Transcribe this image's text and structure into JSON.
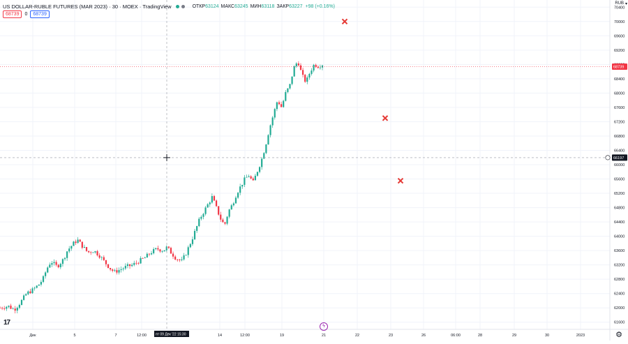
{
  "header": {
    "title": "US DOLLAR-RUBLE FUTURES (MAR 2023) · 30 · MOEX · TradingView",
    "ohlc": [
      {
        "k": "ОТКР",
        "v": "63124"
      },
      {
        "k": "МАКС",
        "v": "63245"
      },
      {
        "k": "МИН",
        "v": "63118"
      },
      {
        "k": "ЗАКР",
        "v": "63227"
      }
    ],
    "change": "+98 (+0.16%)",
    "sell_price": "68739",
    "spread": "0",
    "buy_price": "68739",
    "currency": "RUB"
  },
  "colors": {
    "up": "#22ab94",
    "down": "#f23645",
    "marker": "#e53935",
    "accent": "#2962ff"
  },
  "icons": {
    "logo": "tradingview-logo-icon",
    "settings": "gear-icon",
    "event": "lightning-icon"
  },
  "crosshair": {
    "price_label": "66197",
    "time_label": "пт 09 Дек '22   15:30"
  },
  "last_price_label": "68739",
  "chart_data": {
    "type": "candlestick",
    "y_ticks": [
      70400,
      70000,
      69600,
      69200,
      68800,
      68400,
      68000,
      67600,
      67200,
      66800,
      66400,
      66000,
      65600,
      65200,
      64800,
      64400,
      64000,
      63600,
      63200,
      62800,
      62400,
      62000,
      61600
    ],
    "ylim": [
      61400,
      70600
    ],
    "x_ticks": [
      "Дек",
      "5",
      "7",
      "12:00",
      "14",
      "12:00",
      "19",
      "21",
      "22",
      "23",
      "26",
      "06:00",
      "28",
      "29",
      "30",
      "2023"
    ],
    "series": [
      {
        "close_path": [
          [
            0,
            62000
          ],
          [
            0.02,
            62050
          ],
          [
            0.035,
            61950
          ],
          [
            0.05,
            62150
          ],
          [
            0.065,
            62400
          ],
          [
            0.08,
            62500
          ],
          [
            0.095,
            62650
          ],
          [
            0.105,
            62800
          ],
          [
            0.115,
            63100
          ],
          [
            0.125,
            63300
          ],
          [
            0.14,
            63150
          ],
          [
            0.155,
            63350
          ],
          [
            0.165,
            63600
          ],
          [
            0.18,
            63800
          ],
          [
            0.19,
            63900
          ],
          [
            0.2,
            63750
          ],
          [
            0.215,
            63550
          ],
          [
            0.23,
            63600
          ],
          [
            0.245,
            63450
          ],
          [
            0.255,
            63300
          ],
          [
            0.27,
            63100
          ],
          [
            0.28,
            63000
          ],
          [
            0.29,
            63050
          ],
          [
            0.31,
            63150
          ],
          [
            0.325,
            63200
          ],
          [
            0.34,
            63300
          ],
          [
            0.355,
            63400
          ],
          [
            0.37,
            63550
          ],
          [
            0.385,
            63650
          ],
          [
            0.4,
            63600
          ],
          [
            0.41,
            63700
          ],
          [
            0.415,
            63600
          ],
          [
            0.43,
            63400
          ],
          [
            0.445,
            63300
          ],
          [
            0.455,
            63500
          ],
          [
            0.47,
            63900
          ],
          [
            0.48,
            64200
          ],
          [
            0.49,
            64500
          ],
          [
            0.5,
            64700
          ],
          [
            0.51,
            64900
          ],
          [
            0.52,
            65100
          ],
          [
            0.53,
            64800
          ],
          [
            0.54,
            64500
          ],
          [
            0.55,
            64300
          ],
          [
            0.56,
            64700
          ],
          [
            0.57,
            64900
          ],
          [
            0.58,
            65200
          ],
          [
            0.59,
            65400
          ],
          [
            0.6,
            65600
          ],
          [
            0.61,
            65700
          ],
          [
            0.62,
            65500
          ],
          [
            0.63,
            65800
          ],
          [
            0.64,
            66100
          ],
          [
            0.65,
            66500
          ],
          [
            0.66,
            67000
          ],
          [
            0.67,
            67400
          ],
          [
            0.68,
            67800
          ],
          [
            0.69,
            67600
          ],
          [
            0.7,
            68000
          ],
          [
            0.71,
            68200
          ],
          [
            0.72,
            68700
          ],
          [
            0.73,
            68900
          ],
          [
            0.74,
            68500
          ],
          [
            0.75,
            68300
          ],
          [
            0.76,
            68600
          ],
          [
            0.77,
            68800
          ],
          [
            0.78,
            68750
          ],
          [
            0.79,
            68800
          ]
        ]
      }
    ],
    "markers": [
      {
        "x_label": "22",
        "value": 70000
      },
      {
        "x_label": "23",
        "value": 67300
      },
      {
        "x_label": "23",
        "value": 65550
      }
    ]
  }
}
